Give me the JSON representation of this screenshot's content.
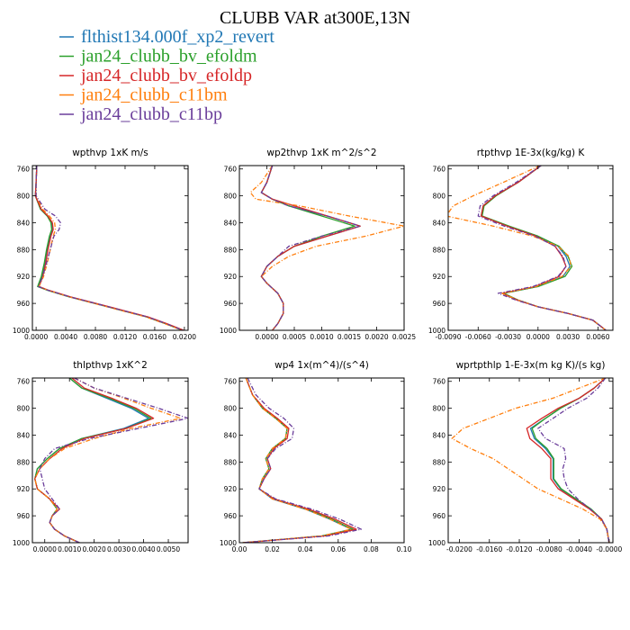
{
  "title": "CLUBB VAR at300E,13N",
  "legend": [
    {
      "name": "flthist134.000f_xp2_revert",
      "color": "#1f77b4",
      "dash": ""
    },
    {
      "name": "jan24_clubb_bv_efoldm",
      "color": "#2ca02c",
      "dash": ""
    },
    {
      "name": "jan24_clubb_bv_efoldp",
      "color": "#d62728",
      "dash": ""
    },
    {
      "name": "jan24_clubb_c11bm",
      "color": "#ff7f0e",
      "dash": "5,2,1,2"
    },
    {
      "name": "jan24_clubb_c11bp",
      "color": "#6a3d9a",
      "dash": "5,2,1,2"
    }
  ],
  "chart_data": [
    {
      "type": "line",
      "title": "wpthvp  1xK m/s",
      "xlim": [
        -0.0005,
        0.0205
      ],
      "ylim": [
        1000,
        755
      ],
      "xticks": [
        0.0,
        0.004,
        0.008,
        0.012,
        0.016,
        0.02
      ],
      "xtick_labels": [
        "0.0000",
        "0.0040",
        "0.0080",
        "0.0120",
        "0.0160",
        "0.0200"
      ],
      "yticks": [
        760,
        800,
        840,
        880,
        920,
        960,
        1000
      ],
      "ytick_labels": [
        "760",
        "800",
        "840",
        "880",
        "920",
        "960",
        "1000"
      ],
      "y": [
        755,
        780,
        800,
        820,
        830,
        840,
        850,
        860,
        880,
        900,
        920,
        935,
        940,
        950,
        960,
        970,
        980,
        990,
        1000
      ],
      "series": [
        {
          "values": [
            0.0001,
            0.0,
            -0.0001,
            0.0006,
            0.0015,
            0.0021,
            0.0022,
            0.0019,
            0.0015,
            0.0012,
            0.0008,
            0.0003,
            0.0015,
            0.0045,
            0.008,
            0.0115,
            0.015,
            0.0175,
            0.0198
          ]
        },
        {
          "values": [
            0.0001,
            0.0,
            -0.0001,
            0.0006,
            0.0015,
            0.002,
            0.0021,
            0.0018,
            0.0014,
            0.0011,
            0.0007,
            0.0002,
            0.0014,
            0.0044,
            0.0079,
            0.0114,
            0.0149,
            0.0174,
            0.0197
          ]
        },
        {
          "values": [
            0.0001,
            0.0,
            -0.0001,
            0.0007,
            0.0016,
            0.0022,
            0.0023,
            0.002,
            0.0016,
            0.0013,
            0.0009,
            0.0004,
            0.0016,
            0.0046,
            0.0081,
            0.0116,
            0.0151,
            0.0176,
            0.0199
          ]
        },
        {
          "values": [
            0.0001,
            0.0,
            0.0,
            0.0009,
            0.0018,
            0.0025,
            0.0026,
            0.0023,
            0.0019,
            0.0015,
            0.001,
            0.0004,
            0.0015,
            0.0044,
            0.0078,
            0.0113,
            0.0148,
            0.0173,
            0.0197
          ]
        },
        {
          "values": [
            0.0001,
            0.0,
            0.0,
            0.0012,
            0.0026,
            0.0033,
            0.0031,
            0.0024,
            0.0019,
            0.0014,
            0.0009,
            0.0003,
            0.0015,
            0.0045,
            0.008,
            0.0115,
            0.015,
            0.0175,
            0.0198
          ]
        }
      ]
    },
    {
      "type": "line",
      "title": "wp2thvp  1xK m^2/s^2",
      "xlim": [
        -0.0005,
        0.0025
      ],
      "ylim": [
        1000,
        755
      ],
      "xticks": [
        0.0,
        0.0005,
        0.001,
        0.0015,
        0.002,
        0.0025
      ],
      "xtick_labels": [
        "0.0000",
        "0.0005",
        "0.0010",
        "0.0015",
        "0.0020",
        "0.0025"
      ],
      "yticks": [
        760,
        800,
        840,
        880,
        920,
        960,
        1000
      ],
      "ytick_labels": [
        "760",
        "800",
        "840",
        "880",
        "920",
        "960",
        "1000"
      ],
      "y": [
        755,
        780,
        795,
        805,
        815,
        830,
        845,
        860,
        875,
        890,
        905,
        920,
        930,
        945,
        960,
        975,
        990,
        1000
      ],
      "series": [
        {
          "values": [
            0.0001,
            0.0,
            -0.0001,
            0.0001,
            0.0004,
            0.0011,
            0.0017,
            0.0011,
            0.0005,
            0.0002,
            0.0,
            -0.0001,
            0.0,
            0.0002,
            0.0003,
            0.0003,
            0.0002,
            0.0001
          ]
        },
        {
          "values": [
            0.0001,
            0.0,
            -0.0001,
            0.0001,
            0.0004,
            0.001,
            0.0016,
            0.001,
            0.0005,
            0.0002,
            0.0,
            -0.0001,
            0.0,
            0.0002,
            0.0003,
            0.0003,
            0.0002,
            0.0001
          ]
        },
        {
          "values": [
            0.0001,
            0.0,
            -0.0001,
            0.0001,
            0.0005,
            0.0011,
            0.0017,
            0.0011,
            0.0005,
            0.0002,
            0.0,
            -0.0001,
            0.0,
            0.0002,
            0.0003,
            0.0003,
            0.0002,
            0.0001
          ]
        },
        {
          "values": [
            0.0001,
            -0.0001,
            -0.0003,
            -0.0002,
            0.0006,
            0.0015,
            0.0025,
            0.0018,
            0.0009,
            0.0004,
            0.0001,
            -0.0001,
            0.0,
            0.0002,
            0.0003,
            0.0003,
            0.0002,
            0.0001
          ]
        },
        {
          "values": [
            0.0001,
            0.0,
            -0.0001,
            0.0001,
            0.0004,
            0.0011,
            0.0017,
            0.001,
            0.0004,
            0.0002,
            0.0,
            -0.0001,
            0.0,
            0.0002,
            0.0003,
            0.0003,
            0.0002,
            0.0001
          ]
        }
      ]
    },
    {
      "type": "line",
      "title": "rtpthvp  1E-3x(kg/kg) K",
      "xlim": [
        -0.009,
        0.0075
      ],
      "ylim": [
        1000,
        755
      ],
      "xticks": [
        -0.009,
        -0.006,
        -0.003,
        0.0,
        0.003,
        0.006
      ],
      "xtick_labels": [
        "-0.0090",
        "-0.0060",
        "-0.0030",
        "0.0000",
        "0.0030",
        "0.0060"
      ],
      "yticks": [
        760,
        800,
        840,
        880,
        920,
        960,
        1000
      ],
      "ytick_labels": [
        "760",
        "800",
        "840",
        "880",
        "920",
        "960",
        "1000"
      ],
      "y": [
        755,
        780,
        800,
        815,
        830,
        845,
        860,
        875,
        890,
        905,
        920,
        935,
        945,
        955,
        965,
        975,
        985,
        1000
      ],
      "series": [
        {
          "values": [
            0.0003,
            -0.002,
            -0.0043,
            -0.0055,
            -0.0057,
            -0.003,
            0.0,
            0.002,
            0.0028,
            0.0032,
            0.0025,
            0.0,
            -0.0035,
            -0.002,
            0.0,
            0.003,
            0.0055,
            0.0068
          ]
        },
        {
          "values": [
            0.0003,
            -0.002,
            -0.0042,
            -0.0054,
            -0.0056,
            -0.0029,
            0.0,
            0.0021,
            0.003,
            0.0034,
            0.0027,
            0.0,
            -0.0034,
            -0.002,
            0.0,
            0.003,
            0.0055,
            0.0068
          ]
        },
        {
          "values": [
            0.0003,
            -0.002,
            -0.0043,
            -0.0055,
            -0.0057,
            -0.0031,
            -0.0002,
            0.0017,
            0.0024,
            0.0028,
            0.0021,
            -0.0003,
            -0.0036,
            -0.0021,
            0.0,
            0.003,
            0.0055,
            0.0068
          ]
        },
        {
          "values": [
            0.0002,
            -0.0035,
            -0.0065,
            -0.0085,
            -0.0092,
            -0.0045,
            -0.0005,
            0.002,
            0.0031,
            0.0033,
            0.0024,
            -0.0002,
            -0.0036,
            -0.002,
            0.0,
            0.003,
            0.0055,
            0.0068
          ]
        },
        {
          "values": [
            0.0003,
            -0.0022,
            -0.0045,
            -0.0058,
            -0.006,
            -0.0034,
            -0.0003,
            0.0017,
            0.0025,
            0.0028,
            0.002,
            -0.0005,
            -0.004,
            -0.0022,
            0.0,
            0.003,
            0.0055,
            0.0068
          ]
        }
      ]
    },
    {
      "type": "line",
      "title": "thlpthvp  1xK^2",
      "xlim": [
        -0.0005,
        0.0058
      ],
      "ylim": [
        1000,
        755
      ],
      "xticks": [
        0.0,
        0.001,
        0.002,
        0.003,
        0.004,
        0.005
      ],
      "xtick_labels": [
        "0.0000",
        "0.0010",
        "0.0020",
        "0.0030",
        "0.0040",
        "0.0050"
      ],
      "yticks": [
        760,
        800,
        840,
        880,
        920,
        960,
        1000
      ],
      "ytick_labels": [
        "760",
        "800",
        "840",
        "880",
        "920",
        "960",
        "1000"
      ],
      "y": [
        755,
        770,
        785,
        800,
        815,
        830,
        845,
        860,
        875,
        890,
        905,
        920,
        935,
        950,
        960,
        970,
        980,
        990,
        1000
      ],
      "series": [
        {
          "values": [
            0.001,
            0.0015,
            0.0025,
            0.0035,
            0.0042,
            0.0032,
            0.0015,
            0.0006,
            0.0001,
            -0.0003,
            -0.0004,
            -0.0003,
            0.0002,
            0.0005,
            0.0003,
            0.0002,
            0.0004,
            0.0008,
            0.0014
          ]
        },
        {
          "values": [
            0.001,
            0.0015,
            0.0026,
            0.0036,
            0.0043,
            0.0033,
            0.0015,
            0.0006,
            0.0001,
            -0.0003,
            -0.0004,
            -0.0003,
            0.0002,
            0.0005,
            0.0003,
            0.0002,
            0.0004,
            0.0008,
            0.0014
          ]
        },
        {
          "values": [
            0.0011,
            0.0016,
            0.0027,
            0.0037,
            0.0044,
            0.0033,
            0.0016,
            0.0007,
            0.0002,
            -0.0002,
            -0.0004,
            -0.0003,
            0.0002,
            0.0006,
            0.0003,
            0.0002,
            0.0004,
            0.0008,
            0.0014
          ]
        },
        {
          "values": [
            0.0012,
            0.002,
            0.0032,
            0.0043,
            0.0055,
            0.0035,
            0.002,
            0.0008,
            0.0002,
            -0.0002,
            -0.0004,
            -0.0003,
            0.0002,
            0.0005,
            0.0003,
            0.0002,
            0.0004,
            0.0008,
            0.0014
          ]
        },
        {
          "values": [
            0.0012,
            0.002,
            0.0033,
            0.0046,
            0.0058,
            0.0038,
            0.0018,
            0.0004,
            0.0,
            -0.0002,
            -0.0001,
            0.0,
            0.0003,
            0.0006,
            0.0003,
            0.0002,
            0.0004,
            0.0008,
            0.0014
          ]
        }
      ]
    },
    {
      "type": "line",
      "title": "wp4  1x(m^4)/(s^4)",
      "xlim": [
        0.0,
        0.1
      ],
      "ylim": [
        1000,
        755
      ],
      "xticks": [
        0.0,
        0.02,
        0.04,
        0.06,
        0.08,
        0.1
      ],
      "xtick_labels": [
        "0.00",
        "0.02",
        "0.04",
        "0.06",
        "0.08",
        "0.10"
      ],
      "yticks": [
        760,
        800,
        840,
        880,
        920,
        960,
        1000
      ],
      "ytick_labels": [
        "760",
        "800",
        "840",
        "880",
        "920",
        "960",
        "1000"
      ],
      "y": [
        755,
        780,
        800,
        815,
        830,
        845,
        860,
        875,
        890,
        905,
        920,
        935,
        950,
        965,
        980,
        990,
        1000
      ],
      "series": [
        {
          "values": [
            0.004,
            0.008,
            0.014,
            0.022,
            0.029,
            0.028,
            0.02,
            0.016,
            0.018,
            0.014,
            0.012,
            0.02,
            0.04,
            0.055,
            0.068,
            0.05,
            0.002
          ]
        },
        {
          "values": [
            0.004,
            0.008,
            0.014,
            0.022,
            0.029,
            0.028,
            0.02,
            0.016,
            0.018,
            0.014,
            0.012,
            0.021,
            0.041,
            0.056,
            0.069,
            0.05,
            0.002
          ]
        },
        {
          "values": [
            0.004,
            0.008,
            0.015,
            0.023,
            0.03,
            0.029,
            0.021,
            0.017,
            0.019,
            0.015,
            0.012,
            0.021,
            0.042,
            0.058,
            0.071,
            0.052,
            0.002
          ]
        },
        {
          "values": [
            0.004,
            0.008,
            0.014,
            0.022,
            0.029,
            0.028,
            0.02,
            0.016,
            0.018,
            0.014,
            0.012,
            0.02,
            0.04,
            0.055,
            0.068,
            0.05,
            0.002
          ]
        },
        {
          "values": [
            0.005,
            0.01,
            0.018,
            0.027,
            0.033,
            0.032,
            0.022,
            0.017,
            0.019,
            0.015,
            0.012,
            0.022,
            0.044,
            0.061,
            0.074,
            0.054,
            0.002
          ]
        }
      ]
    },
    {
      "type": "line",
      "title": "wprtpthlp  1-E-3x(m kg K)/(s kg)",
      "xlim": [
        -0.0215,
        0.0005
      ],
      "ylim": [
        1000,
        755
      ],
      "xticks": [
        -0.02,
        -0.016,
        -0.012,
        -0.008,
        -0.004,
        0.0
      ],
      "xtick_labels": [
        "-0.0200",
        "-0.0160",
        "-0.0120",
        "-0.0080",
        "-0.0040",
        "-0.0000"
      ],
      "yticks": [
        760,
        800,
        840,
        880,
        920,
        960,
        1000
      ],
      "ytick_labels": [
        "760",
        "800",
        "840",
        "880",
        "920",
        "960",
        "1000"
      ],
      "y": [
        755,
        770,
        785,
        800,
        815,
        830,
        845,
        860,
        875,
        890,
        905,
        920,
        935,
        950,
        965,
        980,
        1000
      ],
      "series": [
        {
          "values": [
            -0.0005,
            -0.002,
            -0.004,
            -0.0065,
            -0.0085,
            -0.0105,
            -0.01,
            -0.0085,
            -0.0075,
            -0.0075,
            -0.0075,
            -0.0065,
            -0.0045,
            -0.0025,
            -0.001,
            -0.0003,
            0.0
          ]
        },
        {
          "values": [
            -0.0005,
            -0.002,
            -0.004,
            -0.0065,
            -0.0085,
            -0.0103,
            -0.0098,
            -0.0083,
            -0.0074,
            -0.0074,
            -0.0074,
            -0.0064,
            -0.0044,
            -0.0024,
            -0.001,
            -0.0003,
            0.0
          ]
        },
        {
          "values": [
            -0.0005,
            -0.002,
            -0.004,
            -0.0068,
            -0.009,
            -0.011,
            -0.0106,
            -0.009,
            -0.0078,
            -0.0078,
            -0.0078,
            -0.0068,
            -0.0047,
            -0.0026,
            -0.001,
            -0.0003,
            0.0
          ]
        },
        {
          "values": [
            -0.0005,
            -0.004,
            -0.0075,
            -0.0125,
            -0.016,
            -0.0195,
            -0.021,
            -0.0185,
            -0.0155,
            -0.0135,
            -0.0115,
            -0.0095,
            -0.0065,
            -0.0035,
            -0.0012,
            -0.0003,
            0.0
          ]
        },
        {
          "values": [
            -0.0005,
            -0.0015,
            -0.003,
            -0.0055,
            -0.0075,
            -0.0095,
            -0.0085,
            -0.006,
            -0.0058,
            -0.0062,
            -0.006,
            -0.0055,
            -0.0042,
            -0.0025,
            -0.001,
            -0.0003,
            0.0
          ]
        }
      ]
    }
  ]
}
